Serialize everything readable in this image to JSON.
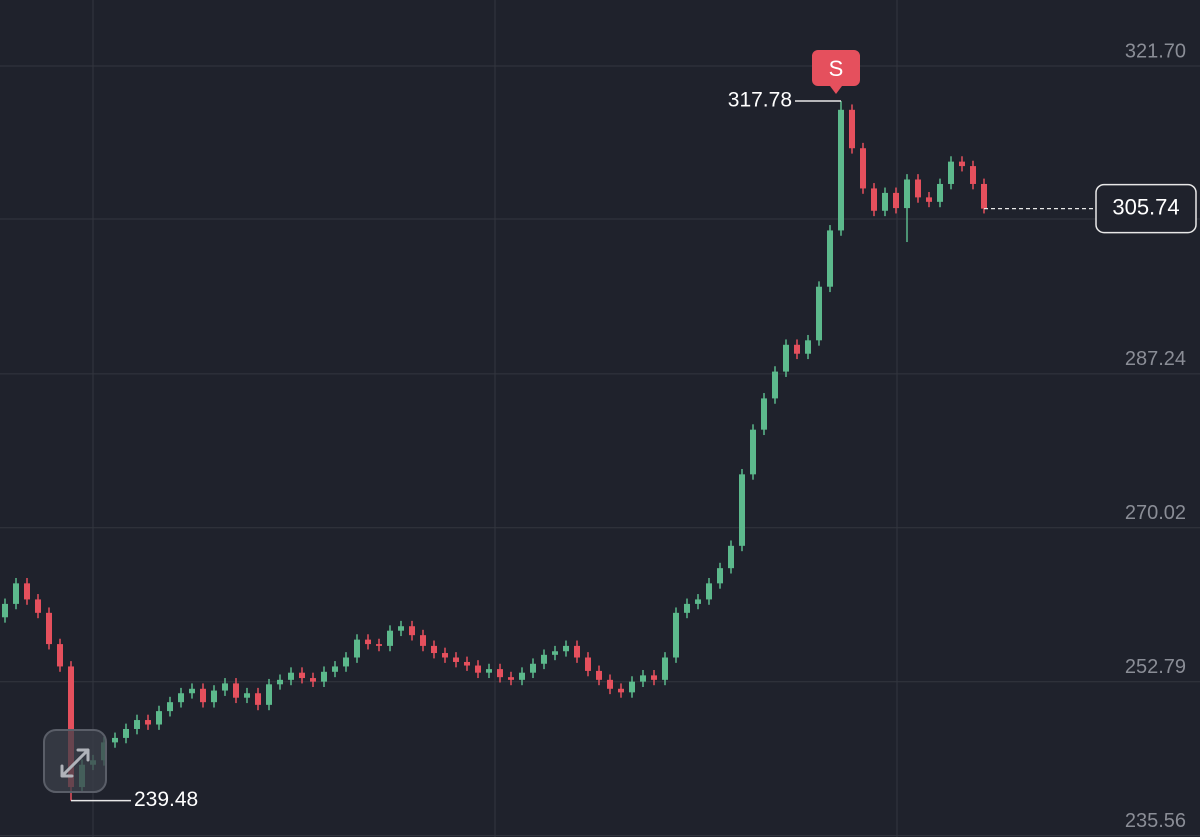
{
  "chart_data": {
    "type": "candlestick",
    "up_color": "#5cb98c",
    "down_color": "#e5505d",
    "open": [
      260.0,
      261.5,
      263.8,
      262.0,
      260.5,
      257.0,
      254.5,
      241.0,
      243.5,
      244.0,
      246.0,
      246.5,
      247.5,
      248.5,
      248.0,
      249.5,
      250.5,
      251.5,
      252.0,
      250.5,
      251.8,
      252.6,
      251.0,
      251.5,
      250.2,
      252.5,
      253.0,
      253.8,
      253.2,
      252.8,
      253.9,
      254.5,
      255.5,
      257.5,
      257.0,
      256.8,
      258.5,
      259.0,
      258.0,
      256.8,
      256.0,
      255.5,
      255.0,
      254.6,
      253.8,
      254.2,
      253.3,
      253.0,
      253.8,
      254.8,
      255.8,
      256.2,
      256.8,
      255.5,
      254.0,
      253.0,
      252.0,
      251.6,
      252.8,
      253.5,
      253.0,
      255.5,
      260.5,
      261.5,
      262.0,
      263.8,
      265.5,
      268.0,
      276.0,
      281.0,
      284.5,
      287.5,
      290.5,
      289.5,
      291.0,
      297.0,
      303.3,
      316.8,
      312.5,
      308.0,
      305.5,
      307.5,
      305.8,
      309.0,
      307.0,
      306.5,
      308.5,
      311.0,
      310.5,
      308.5
    ],
    "high": [
      262.1,
      264.4,
      264.4,
      262.6,
      261.1,
      257.6,
      255.1,
      244.1,
      244.6,
      246.6,
      247.1,
      248.1,
      249.1,
      249.1,
      250.1,
      251.1,
      252.1,
      252.6,
      252.6,
      252.4,
      253.2,
      253.2,
      252.1,
      252.1,
      253.1,
      253.6,
      254.4,
      254.4,
      253.8,
      254.5,
      255.1,
      256.1,
      258.1,
      258.1,
      257.6,
      259.1,
      259.6,
      259.6,
      258.6,
      257.4,
      256.6,
      256.1,
      255.6,
      255.2,
      254.8,
      254.8,
      253.9,
      254.4,
      255.4,
      256.4,
      256.8,
      257.4,
      257.4,
      256.1,
      254.6,
      253.6,
      252.6,
      253.4,
      254.1,
      254.1,
      256.1,
      261.1,
      262.1,
      262.6,
      264.4,
      266.1,
      268.6,
      276.6,
      281.6,
      285.1,
      288.1,
      291.1,
      291.1,
      291.6,
      297.6,
      303.9,
      317.78,
      317.4,
      313.1,
      308.6,
      308.1,
      308.1,
      309.6,
      309.6,
      307.6,
      309.1,
      311.6,
      311.6,
      311.1,
      309.1
    ],
    "low": [
      259.4,
      260.9,
      261.4,
      259.9,
      256.4,
      253.9,
      239.48,
      240.4,
      242.9,
      243.4,
      245.4,
      245.9,
      246.9,
      247.4,
      247.4,
      248.9,
      249.9,
      250.9,
      249.9,
      249.9,
      251.2,
      250.4,
      250.4,
      249.6,
      249.6,
      251.9,
      252.4,
      252.6,
      252.2,
      252.2,
      253.3,
      253.9,
      254.9,
      256.4,
      256.2,
      256.2,
      257.9,
      257.4,
      256.2,
      255.4,
      254.9,
      254.4,
      254.0,
      253.2,
      253.2,
      252.7,
      252.4,
      252.4,
      253.2,
      254.2,
      255.2,
      255.6,
      254.9,
      253.4,
      252.4,
      251.4,
      251.0,
      251.0,
      252.2,
      252.4,
      252.4,
      254.9,
      259.9,
      260.9,
      261.4,
      263.2,
      264.9,
      267.4,
      275.4,
      280.4,
      283.9,
      286.9,
      288.9,
      288.9,
      290.4,
      296.4,
      302.7,
      311.9,
      307.4,
      304.9,
      304.9,
      305.2,
      302.0,
      306.4,
      305.9,
      305.9,
      307.9,
      309.9,
      307.9,
      305.2
    ],
    "close": [
      261.5,
      263.8,
      262.0,
      260.5,
      257.0,
      254.5,
      241.0,
      243.5,
      244.0,
      246.0,
      246.5,
      247.5,
      248.5,
      248.0,
      249.5,
      250.5,
      251.5,
      252.0,
      250.5,
      251.8,
      252.6,
      251.0,
      251.5,
      250.2,
      252.5,
      253.0,
      253.8,
      253.2,
      252.8,
      253.9,
      254.5,
      255.5,
      257.5,
      257.0,
      256.8,
      258.5,
      259.0,
      258.0,
      256.8,
      256.0,
      255.5,
      255.0,
      254.6,
      253.8,
      254.2,
      253.3,
      253.0,
      253.8,
      254.8,
      255.8,
      256.2,
      256.8,
      255.5,
      254.0,
      253.0,
      252.0,
      251.6,
      252.8,
      253.5,
      253.0,
      255.5,
      260.5,
      261.5,
      262.0,
      263.8,
      265.5,
      268.0,
      276.0,
      281.0,
      284.5,
      287.5,
      290.5,
      289.5,
      291.0,
      297.0,
      303.3,
      316.8,
      312.5,
      308.0,
      305.5,
      307.5,
      305.8,
      309.0,
      307.0,
      306.5,
      308.5,
      311.0,
      310.5,
      308.5,
      305.74
    ],
    "ylim": [
      235.41,
      329.09
    ],
    "yticks": [
      {
        "value": 321.7,
        "label": "321.70"
      },
      287.24,
      270.02,
      252.79,
      235.56
    ],
    "grid": true,
    "high_label": 317.78,
    "low_label": 239.48,
    "last_price": 305.74,
    "signal": "S"
  }
}
